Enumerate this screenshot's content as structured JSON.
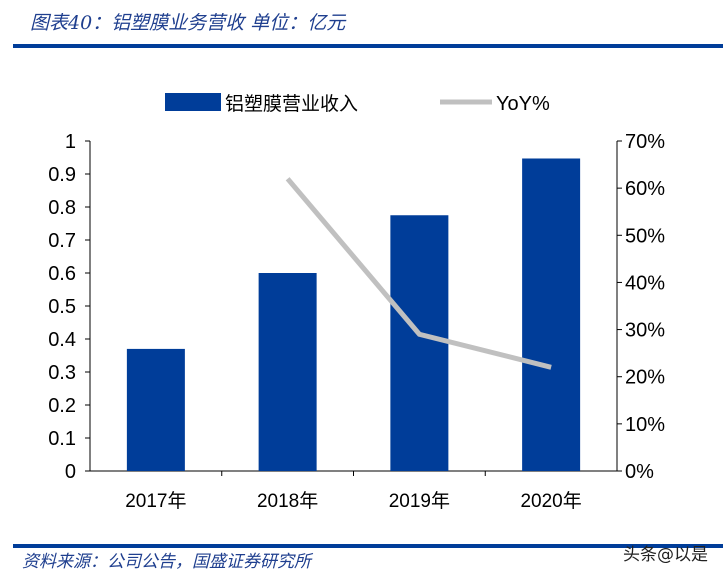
{
  "title": "图表40：铝塑膜业务营收 单位：亿元",
  "source": "资料来源：公司公告，国盛证券研究所",
  "watermark": "头条@以是",
  "chart_data": {
    "type": "bar",
    "categories": [
      "2017年",
      "2018年",
      "2019年",
      "2020年"
    ],
    "series": [
      {
        "name": "铝塑膜营业收入",
        "type": "bar",
        "axis": "left",
        "color": "#003d99",
        "values": [
          0.37,
          0.6,
          0.775,
          0.947
        ]
      },
      {
        "name": "YoY%",
        "type": "line",
        "axis": "right",
        "color": "#c0c0c0",
        "values": [
          null,
          62,
          29,
          22
        ]
      }
    ],
    "ylim": [
      0,
      1
    ],
    "yticks": [
      "0",
      "0.1",
      "0.2",
      "0.3",
      "0.4",
      "0.5",
      "0.6",
      "0.7",
      "0.8",
      "0.9",
      "1"
    ],
    "y2lim": [
      0,
      70
    ],
    "y2ticks": [
      "0%",
      "10%",
      "20%",
      "30%",
      "40%",
      "50%",
      "60%",
      "70%"
    ],
    "legend_position": "top",
    "grid": false
  }
}
